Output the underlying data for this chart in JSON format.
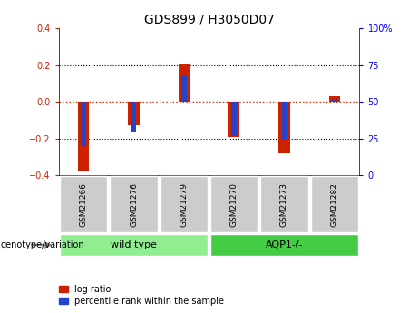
{
  "title": "GDS899 / H3050D07",
  "samples": [
    "GSM21266",
    "GSM21276",
    "GSM21279",
    "GSM21270",
    "GSM21273",
    "GSM21282"
  ],
  "log_ratios": [
    -0.38,
    -0.13,
    0.205,
    -0.19,
    -0.28,
    0.03
  ],
  "percentile_ranks": [
    20,
    30,
    68,
    27,
    24,
    52
  ],
  "group_wild_label": "wild type",
  "group_wild_color": "#90ee90",
  "group_aqp_label": "AQP1-/-",
  "group_aqp_color": "#44cc44",
  "group_wild_indices": [
    0,
    1,
    2
  ],
  "group_aqp_indices": [
    3,
    4,
    5
  ],
  "ylim_left": [
    -0.4,
    0.4
  ],
  "ylim_right": [
    0,
    100
  ],
  "yticks_left": [
    -0.4,
    -0.2,
    0.0,
    0.2,
    0.4
  ],
  "yticks_right": [
    0,
    25,
    50,
    75,
    100
  ],
  "bar_color_red": "#cc2200",
  "bar_color_blue": "#2244cc",
  "zero_line_color": "#cc2200",
  "grid_color": "#000000",
  "sample_box_color": "#cccccc",
  "background_color": "#ffffff",
  "genotype_label": "genotype/variation",
  "legend_red": "log ratio",
  "legend_blue": "percentile rank within the sample"
}
